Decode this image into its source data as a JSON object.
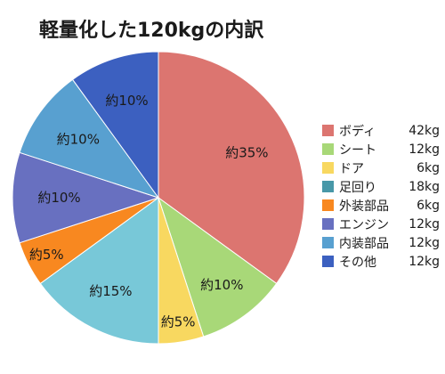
{
  "chart_data": {
    "type": "pie",
    "title": "軽量化した120kgの内訳",
    "legend_position": "right",
    "slices": [
      {
        "name": "ボディ",
        "weight": "42kg",
        "value": 35,
        "label": "約35%",
        "color": "#dc7570"
      },
      {
        "name": "シート",
        "weight": "12kg",
        "value": 10,
        "label": "約10%",
        "color": "#a8d878"
      },
      {
        "name": "ドア",
        "weight": "6kg",
        "value": 5,
        "label": "約5%",
        "color": "#f8d860"
      },
      {
        "name": "足回り",
        "weight": "18kg",
        "value": 15,
        "label": "約15%",
        "color": "#78c8d8"
      },
      {
        "name": "外装部品",
        "weight": "6kg",
        "value": 5,
        "label": "約5%",
        "color": "#f88820"
      },
      {
        "name": "エンジン",
        "weight": "12kg",
        "value": 10,
        "label": "約10%",
        "color": "#6870c0"
      },
      {
        "name": "内装部品",
        "weight": "12kg",
        "value": 10,
        "label": "約10%",
        "color": "#58a0d0"
      },
      {
        "name": "その他",
        "weight": "12kg",
        "value": 10,
        "label": "約10%",
        "color": "#3c60c0"
      }
    ],
    "legend_colors": [
      "#dc7570",
      "#a8d878",
      "#f8d860",
      "#4898a8",
      "#f88820",
      "#6870c0",
      "#58a0d0",
      "#3c60c0"
    ]
  }
}
